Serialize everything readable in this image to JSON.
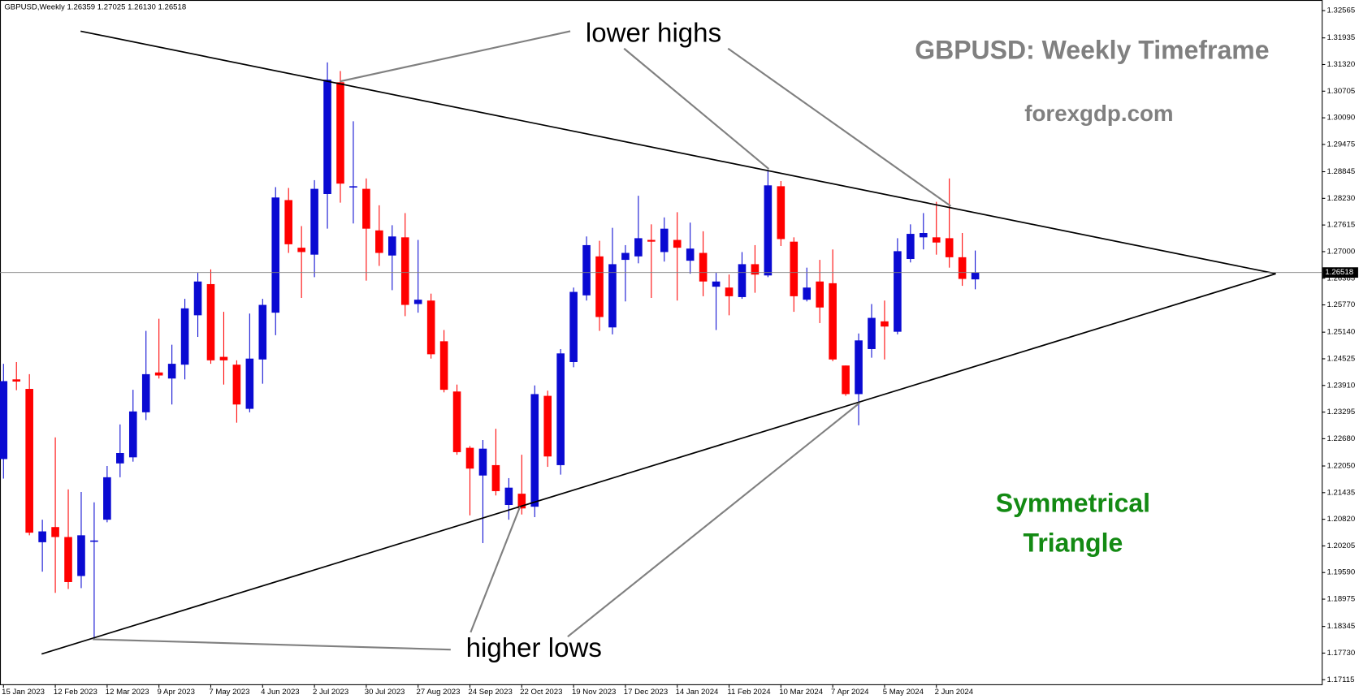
{
  "chart_data": {
    "type": "candlestick",
    "header": "GBPUSD,Weekly  1.26359 1.27025 1.26130 1.26518",
    "categories": [
      "15 Jan 2023",
      null,
      null,
      null,
      "12 Feb 2023",
      null,
      null,
      null,
      "12 Mar 2023",
      null,
      null,
      null,
      "9 Apr 2023",
      null,
      null,
      null,
      "7 May 2023",
      null,
      null,
      null,
      "4 Jun 2023",
      null,
      null,
      null,
      "2 Jul 2023",
      null,
      null,
      null,
      "30 Jul 2023",
      null,
      null,
      null,
      "27 Aug 2023",
      null,
      null,
      null,
      "24 Sep 2023",
      null,
      null,
      null,
      "22 Oct 2023",
      null,
      null,
      null,
      "19 Nov 2023",
      null,
      null,
      null,
      "17 Dec 2023",
      null,
      null,
      null,
      "14 Jan 2024",
      null,
      null,
      null,
      "11 Feb 2024",
      null,
      null,
      null,
      "10 Mar 2024",
      null,
      null,
      null,
      "7 Apr 2024",
      null,
      null,
      null,
      "5 May 2024",
      null,
      null,
      null,
      "2 Jun 2024",
      null,
      null,
      null
    ],
    "open": [
      1.2221,
      1.2405,
      1.2383,
      1.2029,
      1.2064,
      1.2041,
      1.1951,
      1.2031,
      1.2081,
      1.2211,
      1.2225,
      1.2329,
      1.2421,
      1.2407,
      1.2439,
      1.2553,
      1.2625,
      1.2457,
      1.2439,
      1.2337,
      1.2451,
      1.2559,
      1.2819,
      1.2709,
      1.2693,
      1.2833,
      1.3091,
      1.2849,
      1.2845,
      1.2749,
      1.2691,
      1.2733,
      1.2579,
      1.2587,
      1.2493,
      1.2377,
      1.2247,
      1.2183,
      1.2207,
      1.2115,
      1.2141,
      1.2111,
      1.2367,
      1.2207,
      1.2445,
      1.2599,
      1.2689,
      1.2525,
      1.2681,
      1.2689,
      1.2727,
      1.2699,
      1.2727,
      1.2679,
      1.2697,
      1.2619,
      1.2617,
      1.2595,
      1.2671,
      1.2645,
      1.2851,
      1.2723,
      1.2589,
      1.2631,
      1.2627,
      1.2437,
      1.2371,
      1.2475,
      1.2539,
      1.2515,
      1.2683,
      1.2733,
      1.2733,
      1.2731,
      1.2687,
      1.26359
    ],
    "high": [
      1.2441,
      1.2445,
      1.2417,
      1.2081,
      1.2271,
      1.2151,
      1.2145,
      1.2121,
      1.2205,
      1.2301,
      1.2381,
      1.2517,
      1.2545,
      1.2485,
      1.2591,
      1.2651,
      1.2659,
      1.2561,
      1.2449,
      1.2557,
      1.2591,
      1.2849,
      1.2847,
      1.2759,
      1.2865,
      1.3137,
      1.3117,
      1.3001,
      1.2869,
      1.2807,
      1.2761,
      1.2789,
      1.2727,
      1.2603,
      1.2519,
      1.2393,
      1.2251,
      1.2265,
      1.2291,
      1.2177,
      1.2231,
      1.2391,
      1.2379,
      1.2475,
      1.2617,
      1.2735,
      1.2725,
      1.2755,
      1.2715,
      1.2829,
      1.2763,
      1.2779,
      1.2791,
      1.2767,
      1.2747,
      1.2651,
      1.2647,
      1.2699,
      1.2715,
      1.2889,
      1.2863,
      1.2733,
      1.2663,
      1.2681,
      1.2705,
      1.2437,
      1.2511,
      1.2579,
      1.2587,
      1.2731,
      1.2763,
      1.2789,
      1.2815,
      1.2869,
      1.2743,
      1.27025
    ],
    "low": [
      1.2176,
      1.238,
      1.2045,
      1.1961,
      1.1912,
      1.1921,
      1.1923,
      1.1805,
      1.2075,
      1.2179,
      1.2215,
      1.2311,
      1.2407,
      1.2347,
      1.2405,
      1.2503,
      1.2441,
      1.2393,
      1.2305,
      1.2329,
      1.2395,
      1.2507,
      1.2697,
      1.2593,
      1.2641,
      1.2753,
      1.2813,
      1.2765,
      1.2633,
      1.2667,
      1.2611,
      1.2551,
      1.2559,
      1.2453,
      1.2375,
      1.2231,
      1.2091,
      1.2027,
      1.2137,
      1.2081,
      1.2093,
      1.2087,
      1.2203,
      1.2185,
      1.2433,
      1.2587,
      1.2517,
      1.2509,
      1.2585,
      1.2673,
      1.2593,
      1.2677,
      1.2587,
      1.2649,
      1.2597,
      1.2519,
      1.2553,
      1.2591,
      1.2605,
      1.2641,
      1.2713,
      1.2561,
      1.2585,
      1.2535,
      1.2447,
      1.2367,
      1.2299,
      1.2455,
      1.2451,
      1.2509,
      1.2675,
      1.2705,
      1.2693,
      1.2663,
      1.2621,
      1.2613
    ],
    "close": [
      1.2401,
      1.24,
      1.2051,
      1.2054,
      1.2041,
      1.1937,
      1.2045,
      1.2033,
      1.2179,
      1.2235,
      1.2331,
      1.2417,
      1.2414,
      1.2441,
      1.2569,
      1.2631,
      1.2449,
      1.2449,
      1.2347,
      1.2453,
      1.2577,
      1.2825,
      1.2717,
      1.2699,
      1.2845,
      1.3097,
      1.2857,
      1.2851,
      1.2753,
      1.2697,
      1.2735,
      1.2577,
      1.2589,
      1.2463,
      1.2381,
      1.2237,
      1.2199,
      1.2245,
      1.2147,
      1.2155,
      1.2107,
      1.2371,
      1.2227,
      1.2465,
      1.2607,
      1.2715,
      1.2549,
      1.2671,
      1.2697,
      1.2731,
      1.2723,
      1.2753,
      1.2709,
      1.2707,
      1.2631,
      1.2631,
      1.2597,
      1.2671,
      1.2647,
      1.2853,
      1.2729,
      1.2597,
      1.2617,
      1.2571,
      1.2451,
      1.2371,
      1.2495,
      1.2547,
      1.2527,
      1.2701,
      1.2741,
      1.2743,
      1.2721,
      1.2687,
      1.2637,
      1.26518
    ],
    "up_color": "#0a0ad2",
    "down_color": "#ff0000",
    "last_price": 1.26518,
    "ylim": [
      1.1701,
      1.3281
    ],
    "yticks": [
      1.32565,
      1.31935,
      {
        "value": 1.3132,
        "label": "1.31320"
      },
      1.30705,
      {
        "value": 1.3009,
        "label": "1.30090"
      },
      1.29475,
      1.28845,
      {
        "value": 1.2823,
        "label": "1.28230"
      },
      1.27615,
      {
        "value": 1.27,
        "label": "1.27000"
      },
      1.26385,
      {
        "value": 1.2577,
        "label": "1.25770"
      },
      {
        "value": 1.2514,
        "label": "1.25140"
      },
      1.24525,
      {
        "value": 1.2391,
        "label": "1.23910"
      },
      1.23295,
      {
        "value": 1.2268,
        "label": "1.22680"
      },
      {
        "value": 1.2205,
        "label": "1.22050"
      },
      1.21435,
      {
        "value": 1.2082,
        "label": "1.20820"
      },
      1.20205,
      {
        "value": 1.1959,
        "label": "1.19590"
      },
      1.18975,
      1.18345,
      {
        "value": 1.1773,
        "label": "1.17730"
      },
      1.17115
    ],
    "annotations": [
      "lower highs",
      "higher lows",
      "GBPUSD: Weekly Timeframe",
      "forexgdp.com",
      "Symmetrical",
      "Triangle"
    ]
  }
}
